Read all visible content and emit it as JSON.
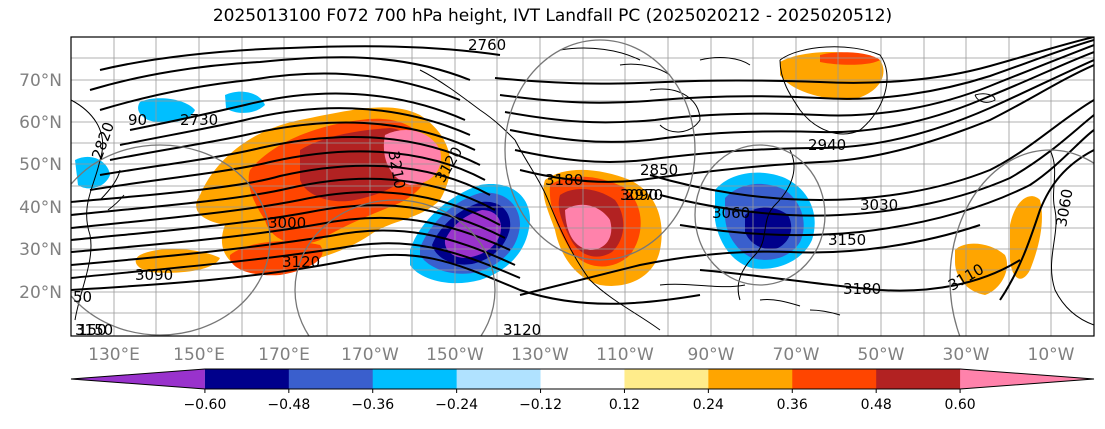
{
  "title": "2025013100 F072 700 hPa height, IVT Landfall PC (2025020212 - 2025020512)",
  "lat_labels": [
    "70°N",
    "60°N",
    "50°N",
    "40°N",
    "30°N",
    "20°N"
  ],
  "lon_labels": [
    "130°E",
    "150°E",
    "170°E",
    "170°W",
    "150°W",
    "130°W",
    "110°W",
    "90°W",
    "70°W",
    "50°W",
    "30°W",
    "10°W"
  ],
  "colorbar": {
    "colors": [
      "#9932CC",
      "#00008B",
      "#3A5FCD",
      "#00BFFF",
      "#B0E2FF",
      "#FFFFFF",
      "#FFEC8B",
      "#FFA500",
      "#FF4500",
      "#B22222",
      "#FF82AB"
    ],
    "tick_labels": [
      "−0.60",
      "−0.48",
      "−0.36",
      "−0.24",
      "−0.12",
      "0.12",
      "0.24",
      "0.36",
      "0.48",
      "0.60"
    ]
  },
  "contour_labels": [
    "2820",
    "2730",
    "2760",
    "3000",
    "3120",
    "3090",
    "3120",
    "3120",
    "3150",
    "3180",
    "3150",
    "3030",
    "3060",
    "3110",
    "3210",
    "3060",
    "3090",
    "2850",
    "2970",
    "3180",
    "50",
    "150",
    "90",
    "2940"
  ]
}
